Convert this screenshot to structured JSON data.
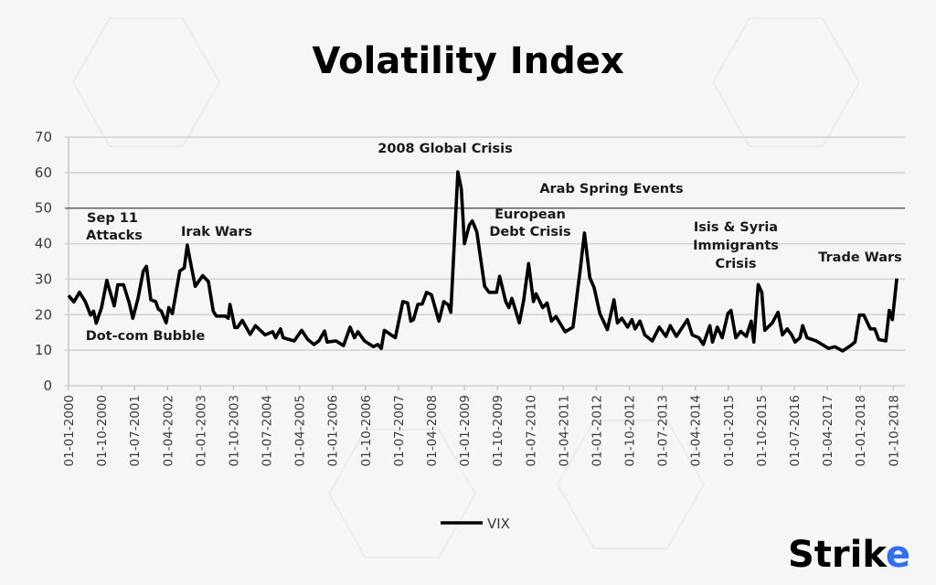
{
  "colors": {
    "line": "#000000",
    "grid": "#d2d2d2",
    "grid_dark": "#444444",
    "logo_accent": "#2f6df6",
    "background": "#f6f6f6"
  },
  "logo": {
    "text_main": "Strik",
    "text_accent": "e"
  },
  "chart_data": {
    "type": "line",
    "title": "Volatility Index",
    "xlabel": "",
    "ylabel": "",
    "ylim": [
      0,
      70
    ],
    "yticks": [
      0,
      10,
      20,
      30,
      40,
      50,
      60,
      70
    ],
    "xlim_years": [
      2000.0,
      2018.9
    ],
    "xtick_labels": [
      "01-01-2000",
      "01-10-2000",
      "01-07-2001",
      "01-04-2002",
      "01-01-2003",
      "01-10-2003",
      "01-07-2004",
      "01-04-2005",
      "01-01-2006",
      "01-10-2006",
      "01-07-2007",
      "01-04-2008",
      "01-01-2009",
      "01-10-2009",
      "01-07-2010",
      "01-04-2011",
      "01-01-2012",
      "01-10-2012",
      "01-07-2013",
      "01-04-2014",
      "01-01-2015",
      "01-10-2015",
      "01-07-2016",
      "01-04-2017",
      "01-01-2018",
      "01-10-2018"
    ],
    "grid": true,
    "legend": {
      "placement": "bottom-center"
    },
    "series": [
      {
        "name": "VIX",
        "x_unit": "decimal year",
        "points": [
          [
            2000.0,
            25.4
          ],
          [
            2000.12,
            23.6
          ],
          [
            2000.25,
            26.3
          ],
          [
            2000.38,
            23.7
          ],
          [
            2000.5,
            19.9
          ],
          [
            2000.57,
            21
          ],
          [
            2000.63,
            17.6
          ],
          [
            2000.75,
            22
          ],
          [
            2000.87,
            29.7
          ],
          [
            2000.93,
            27
          ],
          [
            2001.04,
            22.5
          ],
          [
            2001.12,
            28.4
          ],
          [
            2001.25,
            28.4
          ],
          [
            2001.38,
            23.3
          ],
          [
            2001.46,
            19
          ],
          [
            2001.58,
            24.6
          ],
          [
            2001.7,
            32.3
          ],
          [
            2001.77,
            33.6
          ],
          [
            2001.87,
            24.2
          ],
          [
            2001.98,
            23.7
          ],
          [
            2002.04,
            21.6
          ],
          [
            2002.11,
            21
          ],
          [
            2002.22,
            17.7
          ],
          [
            2002.28,
            22
          ],
          [
            2002.36,
            20.3
          ],
          [
            2002.53,
            32.3
          ],
          [
            2002.63,
            33.2
          ],
          [
            2002.7,
            39.6
          ],
          [
            2002.77,
            34.9
          ],
          [
            2002.88,
            28
          ],
          [
            2003.05,
            31
          ],
          [
            2003.18,
            29.3
          ],
          [
            2003.29,
            21
          ],
          [
            2003.36,
            19.6
          ],
          [
            2003.56,
            19.6
          ],
          [
            2003.63,
            19
          ],
          [
            2003.67,
            22.9
          ],
          [
            2003.78,
            16.4
          ],
          [
            2003.84,
            16.4
          ],
          [
            2003.95,
            18.4
          ],
          [
            2004.13,
            14.5
          ],
          [
            2004.25,
            16.9
          ],
          [
            2004.47,
            14.3
          ],
          [
            2004.64,
            15.2
          ],
          [
            2004.71,
            13.5
          ],
          [
            2004.82,
            16
          ],
          [
            2004.88,
            13.5
          ],
          [
            2005.13,
            12.6
          ],
          [
            2005.3,
            15.6
          ],
          [
            2005.44,
            13
          ],
          [
            2005.58,
            11.6
          ],
          [
            2005.69,
            12.6
          ],
          [
            2005.82,
            15.4
          ],
          [
            2005.88,
            12.3
          ],
          [
            2006.08,
            12.6
          ],
          [
            2006.25,
            11.3
          ],
          [
            2006.4,
            16.5
          ],
          [
            2006.5,
            13.5
          ],
          [
            2006.58,
            15.2
          ],
          [
            2006.73,
            12.6
          ],
          [
            2006.93,
            11
          ],
          [
            2007.03,
            11.6
          ],
          [
            2007.11,
            10.5
          ],
          [
            2007.18,
            15.6
          ],
          [
            2007.43,
            13.5
          ],
          [
            2007.6,
            23.7
          ],
          [
            2007.71,
            23.3
          ],
          [
            2007.78,
            18.2
          ],
          [
            2007.84,
            18.6
          ],
          [
            2007.94,
            22.9
          ],
          [
            2008.04,
            23
          ],
          [
            2008.14,
            26.3
          ],
          [
            2008.25,
            25.6
          ],
          [
            2008.42,
            18.2
          ],
          [
            2008.53,
            23.7
          ],
          [
            2008.63,
            22.8
          ],
          [
            2008.69,
            20.7
          ],
          [
            2008.85,
            60.2
          ],
          [
            2008.93,
            55.4
          ],
          [
            2009.0,
            40
          ],
          [
            2009.11,
            45.2
          ],
          [
            2009.18,
            46.4
          ],
          [
            2009.28,
            43.4
          ],
          [
            2009.46,
            28
          ],
          [
            2009.56,
            26.3
          ],
          [
            2009.73,
            26.3
          ],
          [
            2009.8,
            30.8
          ],
          [
            2009.94,
            23.7
          ],
          [
            2010.01,
            22
          ],
          [
            2010.08,
            24.6
          ],
          [
            2010.25,
            17.7
          ],
          [
            2010.35,
            24.2
          ],
          [
            2010.46,
            34.4
          ],
          [
            2010.57,
            23.7
          ],
          [
            2010.63,
            25.9
          ],
          [
            2010.78,
            22
          ],
          [
            2010.88,
            23.3
          ],
          [
            2010.98,
            18.2
          ],
          [
            2011.08,
            19.5
          ],
          [
            2011.29,
            15.2
          ],
          [
            2011.47,
            16.5
          ],
          [
            2011.63,
            32.3
          ],
          [
            2011.73,
            43
          ],
          [
            2011.85,
            30.5
          ],
          [
            2011.95,
            27.6
          ],
          [
            2012.08,
            20.3
          ],
          [
            2012.25,
            15.8
          ],
          [
            2012.4,
            24.2
          ],
          [
            2012.48,
            17.7
          ],
          [
            2012.58,
            19
          ],
          [
            2012.71,
            16.5
          ],
          [
            2012.81,
            18.6
          ],
          [
            2012.88,
            16
          ],
          [
            2012.99,
            18.2
          ],
          [
            2013.1,
            14.3
          ],
          [
            2013.27,
            12.6
          ],
          [
            2013.43,
            16.5
          ],
          [
            2013.58,
            13.9
          ],
          [
            2013.68,
            16.9
          ],
          [
            2013.82,
            13.9
          ],
          [
            2014.07,
            18.6
          ],
          [
            2014.18,
            14.3
          ],
          [
            2014.33,
            13.5
          ],
          [
            2014.43,
            11.6
          ],
          [
            2014.58,
            16.9
          ],
          [
            2014.64,
            12.3
          ],
          [
            2014.75,
            16.5
          ],
          [
            2014.86,
            13.5
          ],
          [
            2014.99,
            20.3
          ],
          [
            2015.06,
            21.2
          ],
          [
            2015.17,
            13.5
          ],
          [
            2015.28,
            15.3
          ],
          [
            2015.41,
            13.9
          ],
          [
            2015.52,
            18.2
          ],
          [
            2015.58,
            12.3
          ],
          [
            2015.68,
            28.5
          ],
          [
            2015.76,
            26.3
          ],
          [
            2015.83,
            15.6
          ],
          [
            2016.0,
            17.7
          ],
          [
            2016.13,
            20.7
          ],
          [
            2016.23,
            14.3
          ],
          [
            2016.34,
            16
          ],
          [
            2016.44,
            14.3
          ],
          [
            2016.52,
            12.3
          ],
          [
            2016.63,
            13.5
          ],
          [
            2016.69,
            16.9
          ],
          [
            2016.79,
            13.5
          ],
          [
            2017.0,
            12.6
          ],
          [
            2017.28,
            10.5
          ],
          [
            2017.42,
            11
          ],
          [
            2017.6,
            9.8
          ],
          [
            2017.78,
            11.3
          ],
          [
            2017.88,
            12.3
          ],
          [
            2017.98,
            19.9
          ],
          [
            2018.08,
            19.9
          ],
          [
            2018.23,
            16
          ],
          [
            2018.33,
            16
          ],
          [
            2018.42,
            13
          ],
          [
            2018.58,
            12.6
          ],
          [
            2018.66,
            21.2
          ],
          [
            2018.73,
            18.6
          ],
          [
            2018.83,
            30.2
          ]
        ]
      }
    ],
    "annotations": {
      "sep11_line1": "Sep 11",
      "sep11_line2": "Attacks",
      "dotcom": "Dot-com Bubble",
      "irak": "Irak Wars",
      "global2008": "2008 Global Crisis",
      "arab": "Arab Spring Events",
      "euro_line1": "European",
      "euro_line2": "Debt Crisis",
      "isis_line1": "Isis & Syria",
      "isis_line2": "Immigrants",
      "isis_line3": "Crisis",
      "trade": "Trade Wars"
    }
  }
}
